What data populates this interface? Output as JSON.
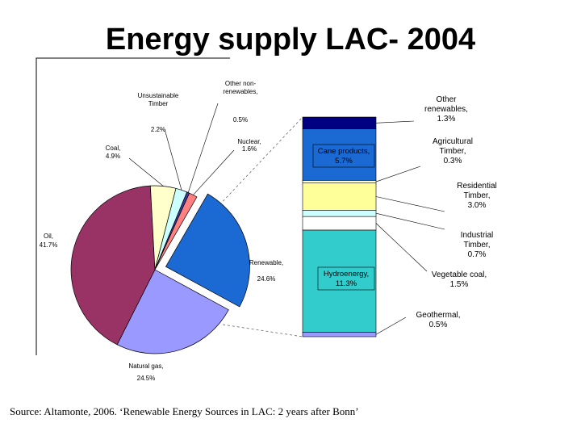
{
  "title": "Energy supply LAC- 2004",
  "source": "Source: Altamonte, 2006. ‘Renewable Energy Sources in LAC: 2 years after Bonn’",
  "chart_data": [
    {
      "type": "pie",
      "slices": [
        {
          "key": "renewable",
          "label": "Renewable,",
          "value_text": "24.6%",
          "value": 24.6,
          "color": "#1b6ad3",
          "exploded": true
        },
        {
          "key": "natural_gas",
          "label": "Natural gas,",
          "value_text": "24.5%",
          "value": 24.5,
          "color": "#9999ff"
        },
        {
          "key": "oil",
          "label": "Oil,",
          "value_text": "41.7%",
          "value": 41.7,
          "color": "#993366"
        },
        {
          "key": "coal",
          "label": "Coal,",
          "value_text": "4.9%",
          "value": 4.9,
          "color": "#ffffcc"
        },
        {
          "key": "unsustainable_timber",
          "label": "Unsustainable Timber",
          "value_text": "2.2%",
          "value": 2.2,
          "color": "#ccffff"
        },
        {
          "key": "other_nonrenewables",
          "label": "Other non- renewables,",
          "value_text": "0.5%",
          "value": 0.5,
          "color": "#3a3aa0"
        },
        {
          "key": "nuclear",
          "label": "Nuclear,",
          "value_text": "1.6%",
          "value": 1.6,
          "color": "#ff8080"
        }
      ]
    },
    {
      "type": "bar",
      "stacked": true,
      "segments": [
        {
          "key": "geothermal",
          "label": "Geothermal,",
          "value_text": "0.5%",
          "value": 0.5,
          "color": "#9999ff"
        },
        {
          "key": "hydroenergy",
          "label": "Hydroenergy,",
          "value_text": "11.3%",
          "value": 11.3,
          "color": "#33cccc"
        },
        {
          "key": "vegetable_coal",
          "label": "Vegetable coal,",
          "value_text": "1.5%",
          "value": 1.5,
          "color": "#ffffff"
        },
        {
          "key": "industrial_timber",
          "label": "Industrial Timber,",
          "value_text": "0.7%",
          "value": 0.7,
          "color": "#ccffff"
        },
        {
          "key": "residential_timber",
          "label": "Residential Timber,",
          "value_text": "3.0%",
          "value": 3.0,
          "color": "#ffff99"
        },
        {
          "key": "agricultural_timber",
          "label": "Agricultural Timber,",
          "value_text": "0.3%",
          "value": 0.3,
          "color": "#ffffcc"
        },
        {
          "key": "cane_products",
          "label": "Cane products,",
          "value_text": "5.7%",
          "value": 5.7,
          "color": "#1b6ad3"
        },
        {
          "key": "other_renewables",
          "label": "Other renewables,",
          "value_text": "1.3%",
          "value": 1.3,
          "color": "#000080"
        }
      ]
    }
  ]
}
